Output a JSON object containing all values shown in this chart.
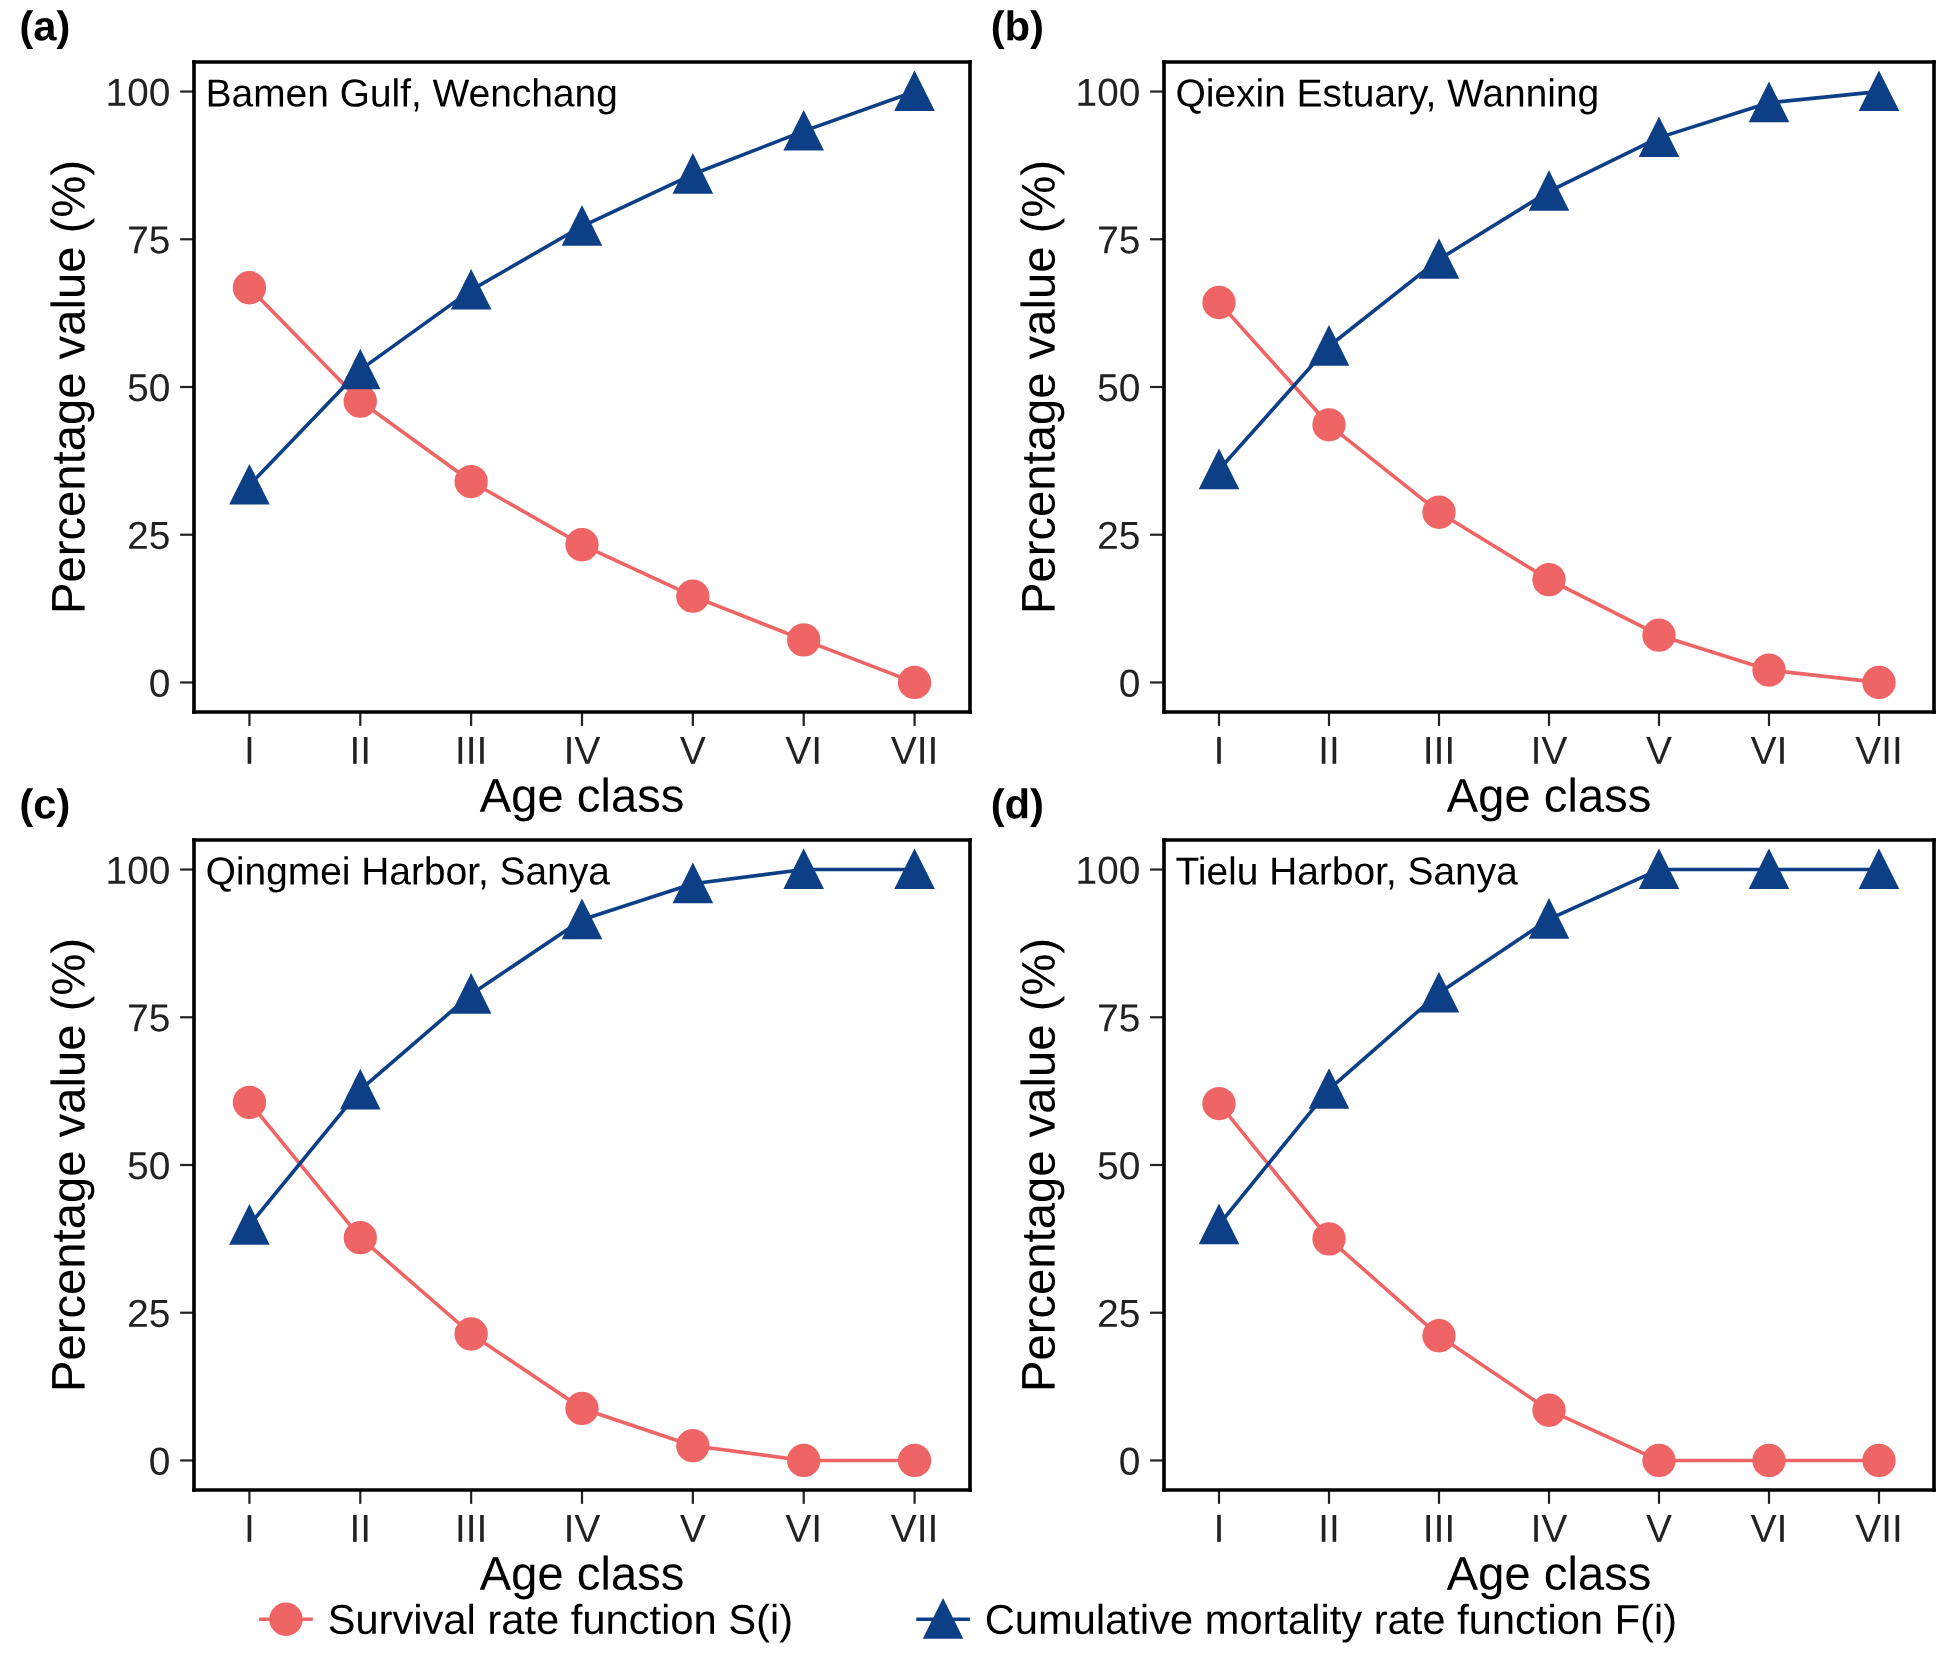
{
  "chart_data": [
    {
      "type": "line",
      "title": "(a)",
      "annotations": [
        "Bamen Gulf, Wenchang"
      ],
      "xlabel": "Age class",
      "ylabel": "Percentage value (%)",
      "categories": [
        "I",
        "II",
        "III",
        "IV",
        "V",
        "VI",
        "VII"
      ],
      "ylim": [
        -5,
        105
      ],
      "yticks": [
        0,
        25,
        50,
        75,
        100
      ],
      "series": [
        {
          "color": "#ef6464",
          "marker": "circle",
          "values": [
            66.8,
            47.6,
            34.0,
            23.3,
            14.6,
            7.2,
            0
          ]
        },
        {
          "color": "#0c3f85",
          "marker": "triangle",
          "values": [
            33.4,
            52.9,
            66.4,
            77.2,
            86.0,
            93.3,
            100
          ]
        }
      ]
    },
    {
      "type": "line",
      "title": "(b)",
      "annotations": [
        "Qiexin Estuary, Wanning"
      ],
      "xlabel": "Age class",
      "ylabel": "Percentage value (%)",
      "categories": [
        "I",
        "II",
        "III",
        "IV",
        "V",
        "VI",
        "VII"
      ],
      "ylim": [
        -5,
        105
      ],
      "yticks": [
        0,
        25,
        50,
        75,
        100
      ],
      "series": [
        {
          "color": "#ef6464",
          "marker": "circle",
          "values": [
            64.3,
            43.6,
            28.8,
            17.4,
            8.0,
            2.1,
            0
          ]
        },
        {
          "color": "#0c3f85",
          "marker": "triangle",
          "values": [
            36.0,
            56.9,
            71.6,
            83.1,
            92.2,
            98.1,
            100
          ]
        }
      ]
    },
    {
      "type": "line",
      "title": "(c)",
      "annotations": [
        "Qingmei Harbor, Sanya"
      ],
      "xlabel": "Age class",
      "ylabel": "Percentage value (%)",
      "categories": [
        "I",
        "II",
        "III",
        "IV",
        "V",
        "VI",
        "VII"
      ],
      "ylim": [
        -5,
        105
      ],
      "yticks": [
        0,
        25,
        50,
        75,
        100
      ],
      "series": [
        {
          "color": "#ef6464",
          "marker": "circle",
          "values": [
            60.6,
            37.7,
            21.4,
            8.8,
            2.5,
            0,
            0
          ]
        },
        {
          "color": "#0c3f85",
          "marker": "triangle",
          "values": [
            39.8,
            62.7,
            78.9,
            91.5,
            97.6,
            100,
            100
          ]
        }
      ]
    },
    {
      "type": "line",
      "title": "(d)",
      "annotations": [
        "Tielu Harbor, Sanya"
      ],
      "xlabel": "Age class",
      "ylabel": "Percentage value (%)",
      "categories": [
        "I",
        "II",
        "III",
        "IV",
        "V",
        "VI",
        "VII"
      ],
      "ylim": [
        -5,
        105
      ],
      "yticks": [
        0,
        25,
        50,
        75,
        100
      ],
      "legend": "bottom",
      "series": [
        {
          "name": "Survival rate function S(i)",
          "color": "#ef6464",
          "marker": "circle",
          "values": [
            60.4,
            37.5,
            21.1,
            8.5,
            0,
            0,
            0
          ]
        },
        {
          "name": "Cumulative mortality rate function F(i)",
          "color": "#0c3f85",
          "marker": "triangle",
          "values": [
            39.9,
            62.8,
            79.1,
            91.6,
            100,
            100,
            100
          ]
        }
      ]
    }
  ]
}
